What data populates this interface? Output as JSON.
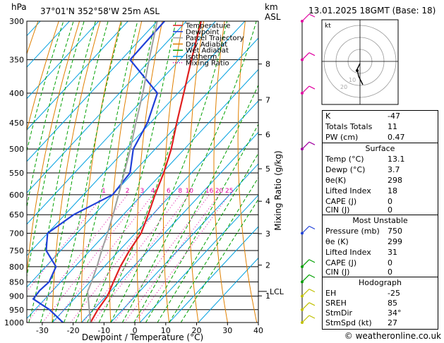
{
  "header": {
    "hpa_label": "hPa",
    "location": "37°01'N  352°58'W  25m  ASL",
    "km_label": "km",
    "asl_label": "ASL",
    "datetime": "13.01.2025  18GMT  (Base: 18)"
  },
  "chart_data": {
    "type": "line",
    "xlabel": "Dewpoint / Temperature (°C)",
    "ylabel": "Mixing Ratio (g/kg)",
    "xlim": [
      -35,
      40
    ],
    "ylim_hpa": [
      1000,
      300
    ],
    "x_ticks": [
      -30,
      -20,
      -10,
      0,
      10,
      20,
      30,
      40
    ],
    "pressure_levels": [
      300,
      350,
      400,
      450,
      500,
      550,
      600,
      650,
      700,
      750,
      800,
      850,
      900,
      950,
      1000
    ],
    "km_ticks": [
      {
        "km": 8,
        "hpa": 356
      },
      {
        "km": 7,
        "hpa": 411
      },
      {
        "km": 6,
        "hpa": 472
      },
      {
        "km": 5,
        "hpa": 541
      },
      {
        "km": 4,
        "hpa": 616
      },
      {
        "km": 3,
        "hpa": 701
      },
      {
        "km": 2,
        "hpa": 795
      },
      {
        "km": 1,
        "hpa": 899
      }
    ],
    "lcl": {
      "label": "LCL",
      "hpa": 883
    },
    "mixing_ratio_labels": [
      "1",
      "2",
      "3",
      "4",
      "6",
      "8",
      "10",
      "16",
      "20",
      "25"
    ],
    "mixing_ratio_values": [
      1,
      2,
      3,
      4,
      6,
      8,
      10,
      16,
      20,
      25
    ],
    "legend": [
      {
        "name": "Temperature",
        "color": "#e02020",
        "style": "solid"
      },
      {
        "name": "Dewpoint",
        "color": "#2040d8",
        "style": "solid"
      },
      {
        "name": "Parcel Trajectory",
        "color": "#a0a0a0",
        "style": "solid"
      },
      {
        "name": "Dry Adiabat",
        "color": "#e08000",
        "style": "solid"
      },
      {
        "name": "Wet Adiabat",
        "color": "#00a000",
        "style": "solid"
      },
      {
        "name": "Isotherm",
        "color": "#00a0e0",
        "style": "solid"
      },
      {
        "name": "Mixing Ratio",
        "color": "#e000a0",
        "style": "dotted"
      }
    ],
    "series": [
      {
        "name": "Temperature",
        "color": "#e02020",
        "points": [
          [
            1000,
            13.1
          ],
          [
            950,
            11.5
          ],
          [
            900,
            10.5
          ],
          [
            850,
            8.0
          ],
          [
            800,
            5.5
          ],
          [
            750,
            3.5
          ],
          [
            700,
            2.0
          ],
          [
            650,
            -1.5
          ],
          [
            600,
            -5.5
          ],
          [
            550,
            -9.5
          ],
          [
            500,
            -14.5
          ],
          [
            450,
            -21.0
          ],
          [
            400,
            -28.0
          ],
          [
            350,
            -36.0
          ],
          [
            300,
            -45.0
          ]
        ]
      },
      {
        "name": "Dewpoint",
        "color": "#2040d8",
        "points": [
          [
            1000,
            3.7
          ],
          [
            950,
            -5.0
          ],
          [
            910,
            -14.0
          ],
          [
            880,
            -14.5
          ],
          [
            850,
            -14.0
          ],
          [
            800,
            -16.5
          ],
          [
            750,
            -25.0
          ],
          [
            700,
            -30.0
          ],
          [
            650,
            -27.0
          ],
          [
            600,
            -20.0
          ],
          [
            550,
            -21.0
          ],
          [
            500,
            -27.5
          ],
          [
            450,
            -31.0
          ],
          [
            400,
            -37.0
          ],
          [
            350,
            -57.0
          ],
          [
            300,
            -57.5
          ]
        ]
      },
      {
        "name": "Parcel Trajectory",
        "color": "#a0a0a0",
        "points": [
          [
            1000,
            13.1
          ],
          [
            883,
            2.2
          ],
          [
            850,
            0.5
          ],
          [
            800,
            -2.5
          ],
          [
            750,
            -6.0
          ],
          [
            700,
            -9.5
          ],
          [
            650,
            -13.5
          ],
          [
            600,
            -18.0
          ],
          [
            550,
            -23.0
          ],
          [
            500,
            -28.5
          ],
          [
            450,
            -35.0
          ],
          [
            400,
            -42.0
          ],
          [
            350,
            -50.5
          ],
          [
            300,
            -60.0
          ]
        ]
      }
    ],
    "wind_barbs_hpa": [
      1000,
      950,
      900,
      850,
      800,
      700,
      500,
      400,
      350,
      300
    ]
  },
  "hodograph": {
    "label": "kt",
    "ring_labels": [
      "10",
      "20"
    ]
  },
  "indices": [
    {
      "label": "K",
      "value": "-47"
    },
    {
      "label": "Totals Totals",
      "value": "11"
    },
    {
      "label": "PW (cm)",
      "value": "0.47"
    }
  ],
  "surface": {
    "title": "Surface",
    "rows": [
      {
        "label": "Temp (°C)",
        "value": "13.1"
      },
      {
        "label": "Dewp (°C)",
        "value": "3.7"
      },
      {
        "label": "θe(K)",
        "value": "298"
      },
      {
        "label": "Lifted Index",
        "value": "18"
      },
      {
        "label": "CAPE (J)",
        "value": "0"
      },
      {
        "label": "CIN (J)",
        "value": "0"
      }
    ]
  },
  "most_unstable": {
    "title": "Most Unstable",
    "rows": [
      {
        "label": "Pressure (mb)",
        "value": "750"
      },
      {
        "label": "θe (K)",
        "value": "299"
      },
      {
        "label": "Lifted Index",
        "value": "31"
      },
      {
        "label": "CAPE (J)",
        "value": "0"
      },
      {
        "label": "CIN (J)",
        "value": "0"
      }
    ]
  },
  "hodograph_table": {
    "title": "Hodograph",
    "rows": [
      {
        "label": "EH",
        "value": "-25"
      },
      {
        "label": "SREH",
        "value": "85"
      },
      {
        "label": "StmDir",
        "value": "34°"
      },
      {
        "label": "StmSpd (kt)",
        "value": "27"
      }
    ]
  },
  "credit": "© weatheronline.co.uk"
}
